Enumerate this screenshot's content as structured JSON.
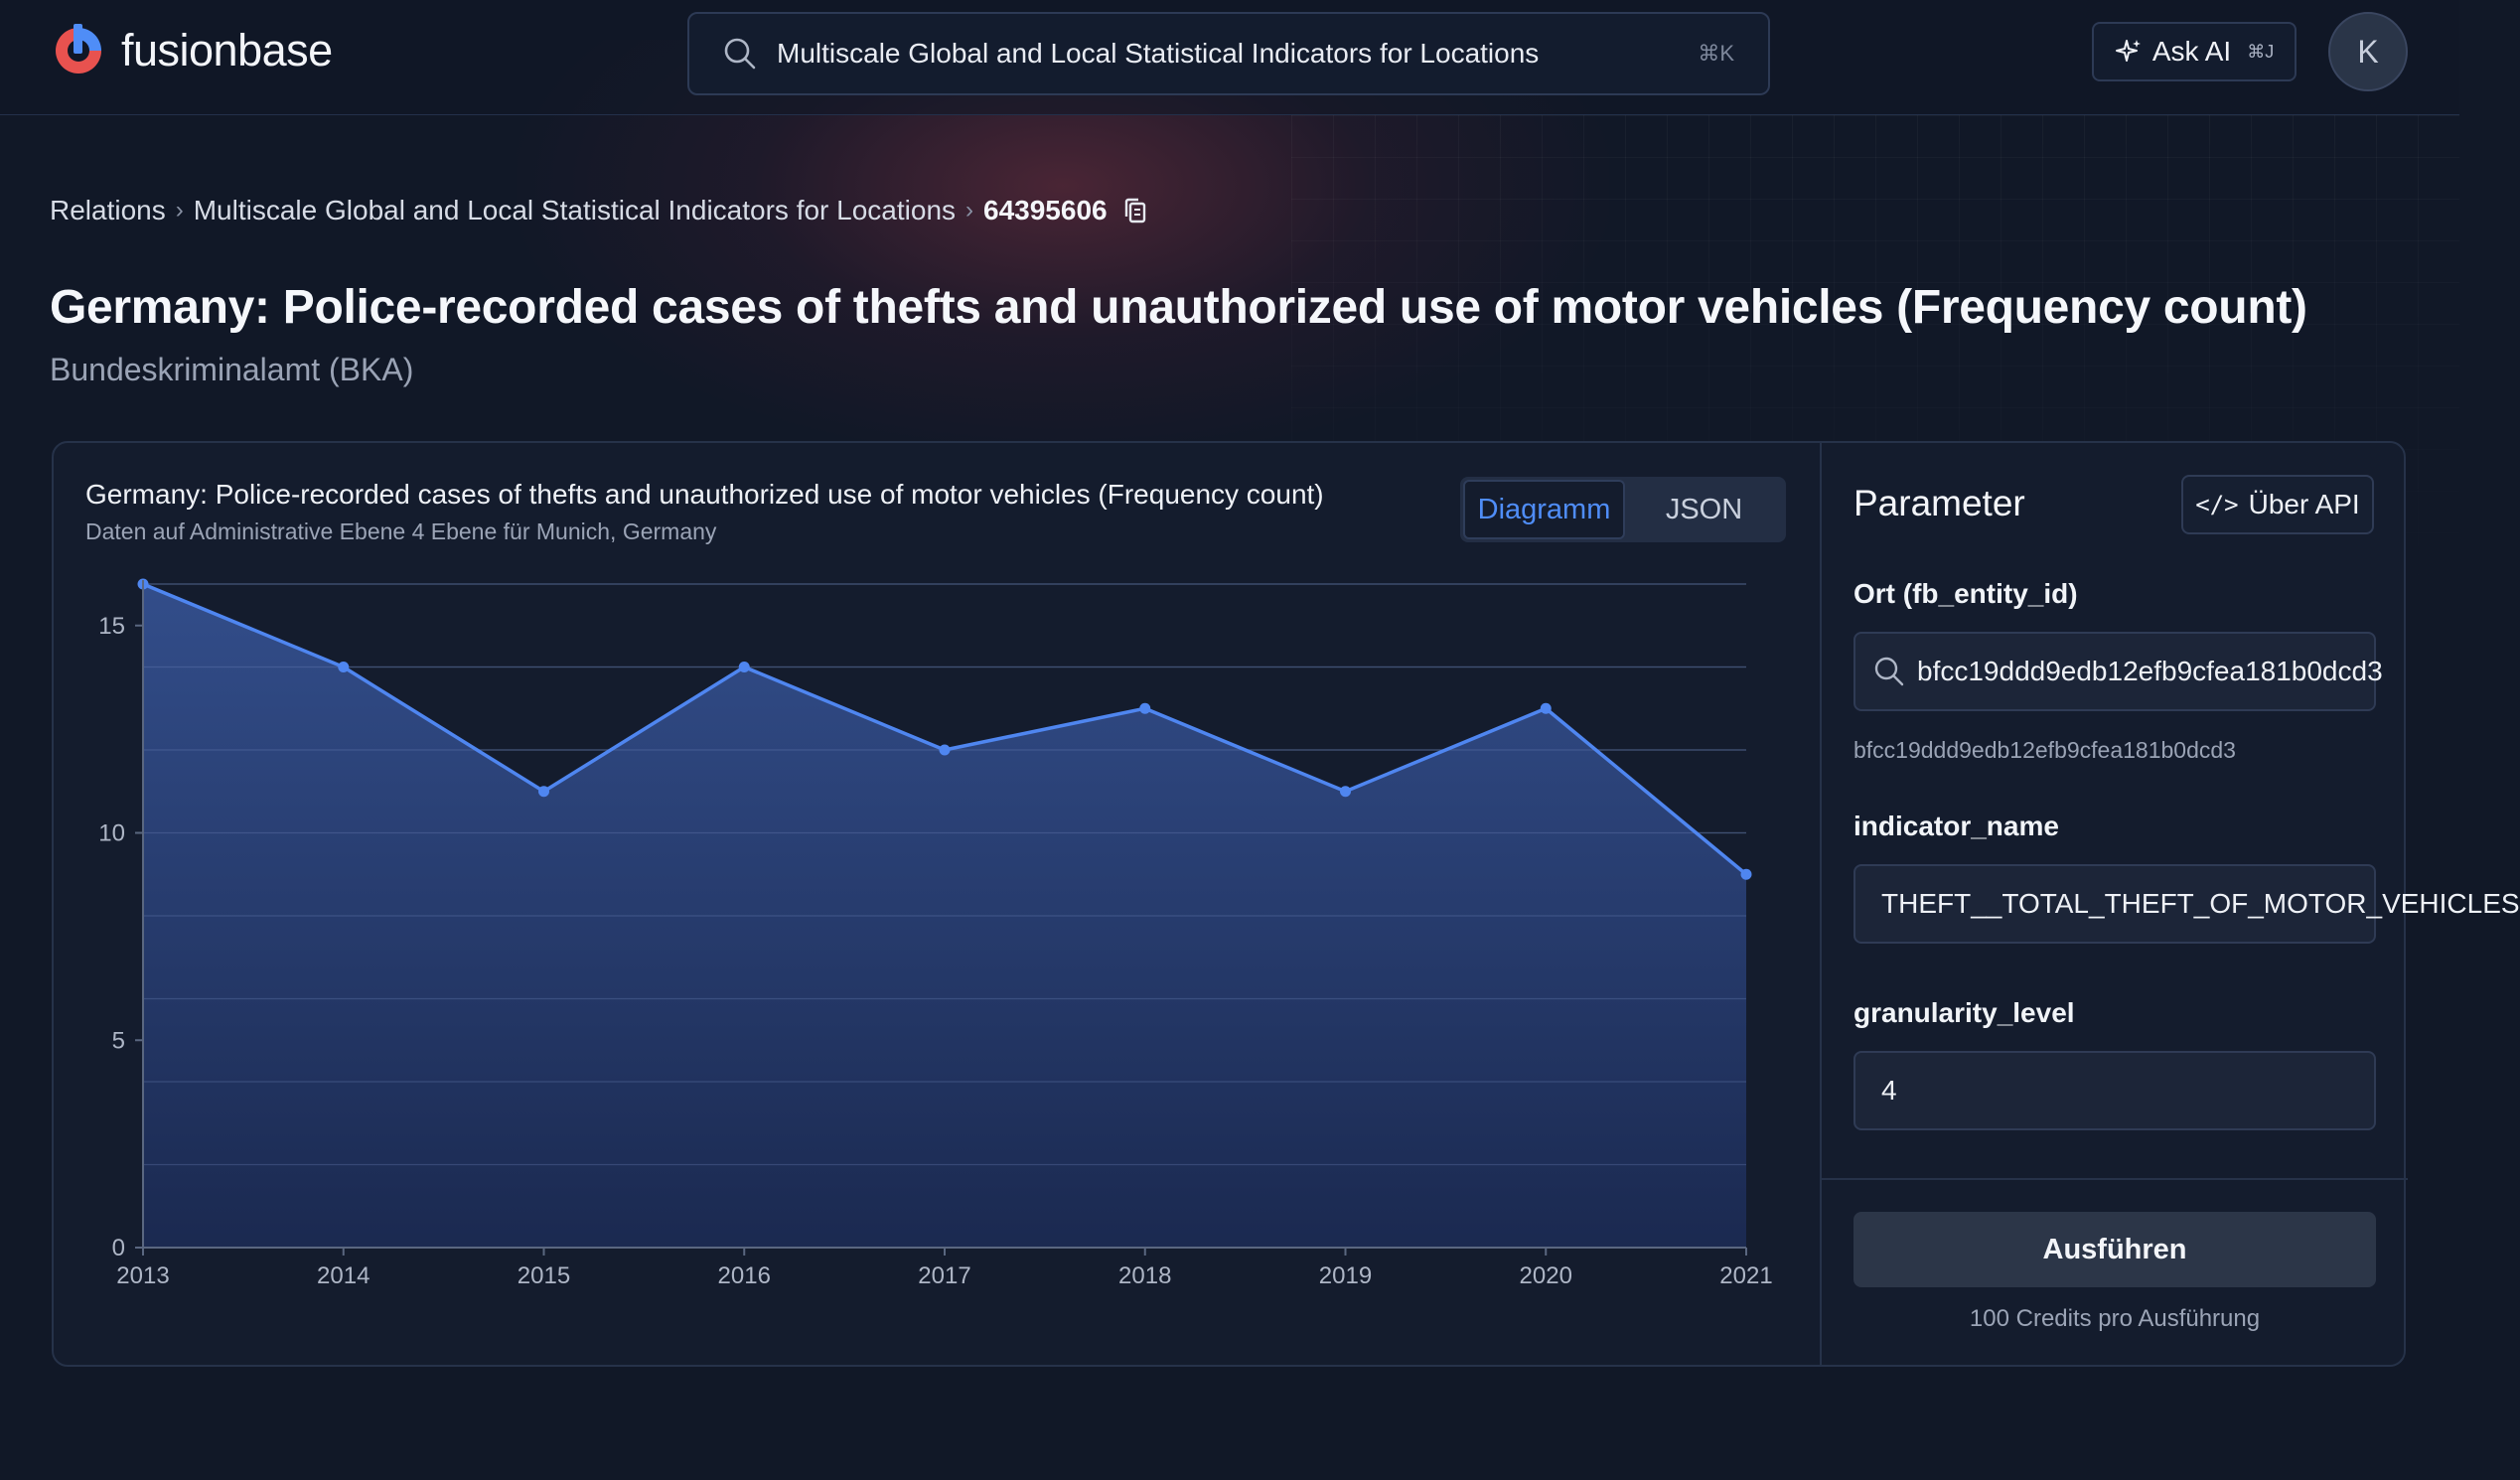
{
  "app": {
    "name": "fusionbase",
    "search_text": "Multiscale Global and Local Statistical Indicators for Locations",
    "search_shortcut": "⌘K",
    "ask_ai_label": "Ask AI",
    "ask_ai_shortcut": "⌘J",
    "avatar_initial": "K"
  },
  "breadcrumb": {
    "items": [
      "Relations",
      "Multiscale Global and Local Statistical Indicators for Locations"
    ],
    "current": "64395606"
  },
  "page": {
    "title": "Germany: Police-recorded cases of thefts and unauthorized use of motor vehicles (Frequency count)",
    "subtitle": "Bundeskriminalamt (BKA)"
  },
  "chart_panel": {
    "title": "Germany: Police-recorded cases of thefts and unauthorized use of motor vehicles (Frequency count)",
    "subtitle": "Daten auf Administrative Ebene 4 Ebene für Munich, Germany",
    "tabs": [
      {
        "label": "Diagramm",
        "active": true
      },
      {
        "label": "JSON",
        "active": false
      }
    ]
  },
  "chart_data": {
    "type": "area",
    "title": "Germany: Police-recorded cases of thefts and unauthorized use of motor vehicles (Frequency count)",
    "categories": [
      "2013",
      "2014",
      "2015",
      "2016",
      "2017",
      "2018",
      "2019",
      "2020",
      "2021"
    ],
    "values": [
      16,
      14,
      11,
      14,
      12,
      13,
      11,
      13,
      9
    ],
    "ylim": [
      0,
      16
    ],
    "yticks": [
      0,
      5,
      10,
      15
    ],
    "xlabel": "",
    "ylabel": "",
    "grid": true,
    "colors": {
      "line": "#4f86f0",
      "fill_top": "#34508f",
      "fill_bottom": "#1b2a52",
      "grid": "#2c3a55",
      "axis": "#5a6780"
    }
  },
  "parameters": {
    "title": "Parameter",
    "api_button": "Über API",
    "fields": [
      {
        "label": "Ort (fb_entity_id)",
        "value": "bfcc19ddd9edb12efb9cfea181b0dcd3",
        "hint": "bfcc19ddd9edb12efb9cfea181b0dcd3"
      },
      {
        "label": "indicator_name",
        "value": "THEFT__TOTAL_THEFT_OF_MOTOR_VEHICLES"
      },
      {
        "label": "granularity_level",
        "value": "4"
      }
    ],
    "run_button": "Ausführen",
    "credits_note": "100 Credits pro Ausführung"
  },
  "colors": {
    "accent": "#4f8df7",
    "background": "#111827",
    "card": "#141c2d"
  }
}
